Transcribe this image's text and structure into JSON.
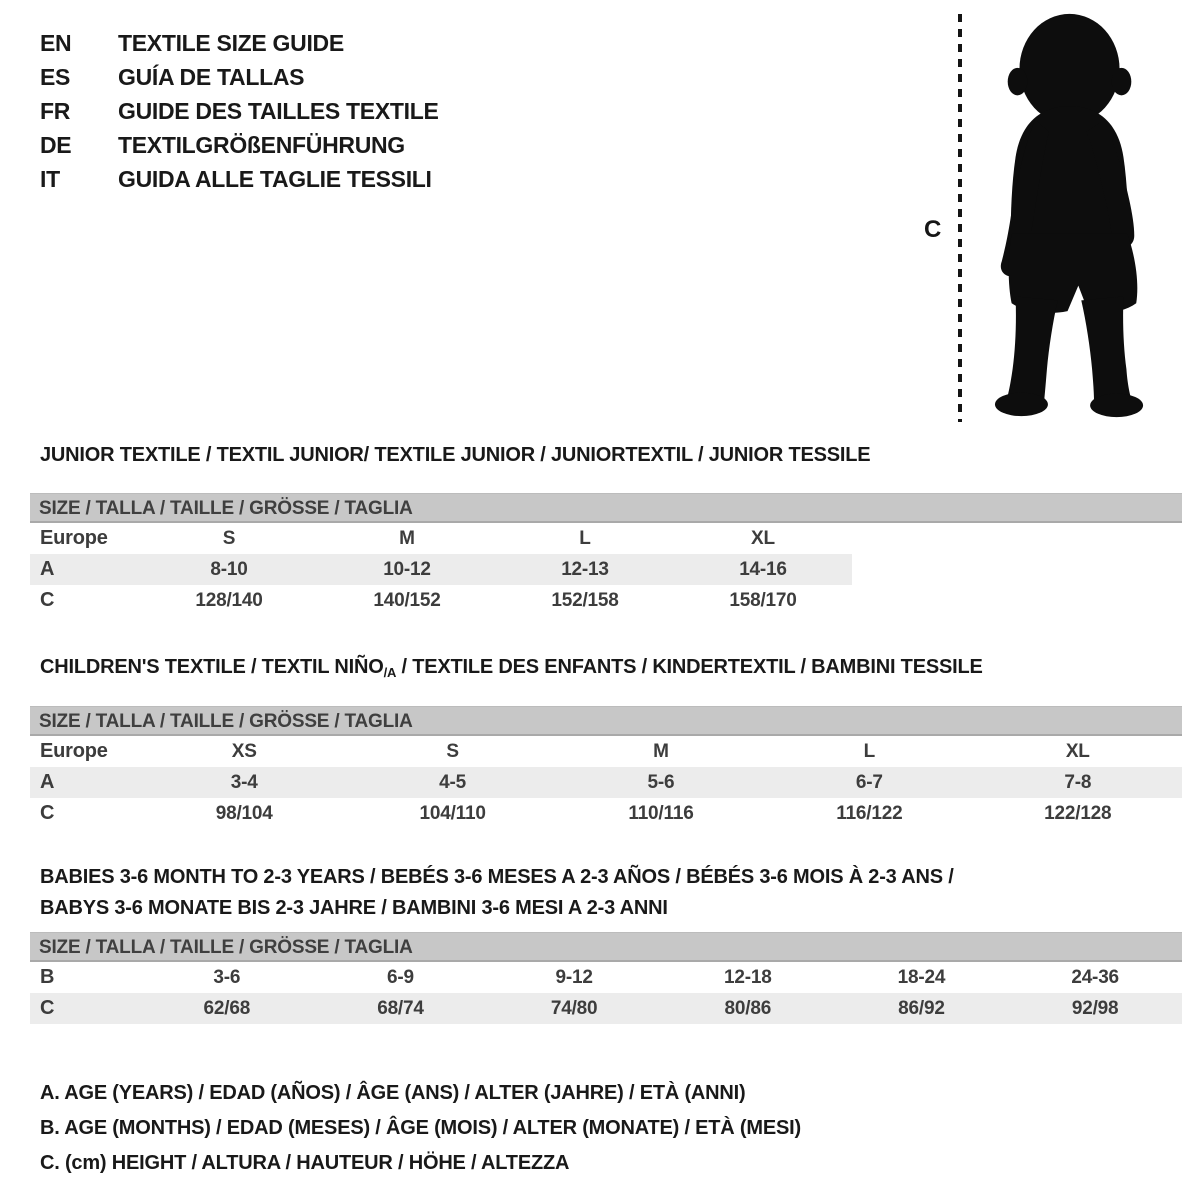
{
  "colors": {
    "size_bar_bg": "#c7c7c7",
    "size_bar_border": "#a9a9a9",
    "shaded_row_bg": "#ececec",
    "heading_text": "#191919",
    "table_text": "#3d3d3d",
    "silhouette": "#0d0d0d"
  },
  "header": {
    "languages": [
      {
        "code": "EN",
        "label": "TEXTILE SIZE GUIDE"
      },
      {
        "code": "ES",
        "label": "GUÍA DE TALLAS"
      },
      {
        "code": "FR",
        "label": "GUIDE DES TAILLES TEXTILE"
      },
      {
        "code": "DE",
        "label": "TEXTILGRÖßENFÜHRUNG"
      },
      {
        "code": "IT",
        "label": "GUIDA ALLE TAGLIE TESSILI"
      }
    ],
    "figure": {
      "measure_label": "C",
      "silhouette_name": "toddler-silhouette"
    }
  },
  "sections": [
    {
      "title_lines": [
        [
          {
            "text": "JUNIOR TEXTILE / TEXTIL JUNIOR/ TEXTILE JUNIOR / JUNIORTEXTIL / JUNIOR TESSILE"
          }
        ]
      ],
      "size_header": "SIZE / TALLA / TAILLE / GRÖSSE / TAGLIA",
      "rows": [
        {
          "label": "Europe",
          "values": [
            "S",
            "M",
            "L",
            "XL"
          ],
          "shaded": false
        },
        {
          "label": "A",
          "values": [
            "8-10",
            "10-12",
            "12-13",
            "14-16"
          ],
          "shaded": true
        },
        {
          "label": "C",
          "values": [
            "128/140",
            "140/152",
            "152/158",
            "158/170"
          ],
          "shaded": false
        }
      ]
    },
    {
      "title_lines": [
        [
          {
            "text": "CHILDREN'S TEXTILE / TEXTIL NIÑO"
          },
          {
            "text": "/A",
            "sub": true
          },
          {
            "text": " / TEXTILE DES ENFANTS / KINDERTEXTIL / BAMBINI TESSILE"
          }
        ]
      ],
      "size_header": "SIZE / TALLA / TAILLE / GRÖSSE / TAGLIA",
      "rows": [
        {
          "label": "Europe",
          "values": [
            "XS",
            "S",
            "M",
            "L",
            "XL"
          ],
          "shaded": false
        },
        {
          "label": "A",
          "values": [
            "3-4",
            "4-5",
            "5-6",
            "6-7",
            "7-8"
          ],
          "shaded": true
        },
        {
          "label": "C",
          "values": [
            "98/104",
            "104/110",
            "110/116",
            "116/122",
            "122/128"
          ],
          "shaded": false
        }
      ]
    },
    {
      "title_lines": [
        [
          {
            "text": "BABIES 3-6 MONTH TO 2-3 YEARS / BEBÉS 3-6 MESES A 2-3 AÑOS / BÉBÉS 3-6 MOIS À 2-3 ANS /"
          }
        ],
        [
          {
            "text": "BABYS 3-6 MONATE BIS 2-3 JAHRE / BAMBINI 3-6 MESI A 2-3 ANNI"
          }
        ]
      ],
      "size_header": "SIZE / TALLA / TAILLE / GRÖSSE / TAGLIA",
      "rows": [
        {
          "label": "B",
          "values": [
            "3-6",
            "6-9",
            "9-12",
            "12-18",
            "18-24",
            "24-36"
          ],
          "shaded": false
        },
        {
          "label": "C",
          "values": [
            "62/68",
            "68/74",
            "74/80",
            "80/86",
            "86/92",
            "92/98"
          ],
          "shaded": true
        }
      ]
    }
  ],
  "legend": [
    "A. AGE (YEARS) / EDAD (AÑOS) / ÂGE (ANS) / ALTER (JAHRE) / ETÀ (ANNI)",
    "B. AGE (MONTHS) / EDAD (MESES) / ÂGE (MOIS) / ALTER (MONATE) / ETÀ (MESI)",
    "C. (cm) HEIGHT / ALTURA / HAUTEUR / HÖHE / ALTEZZA"
  ]
}
